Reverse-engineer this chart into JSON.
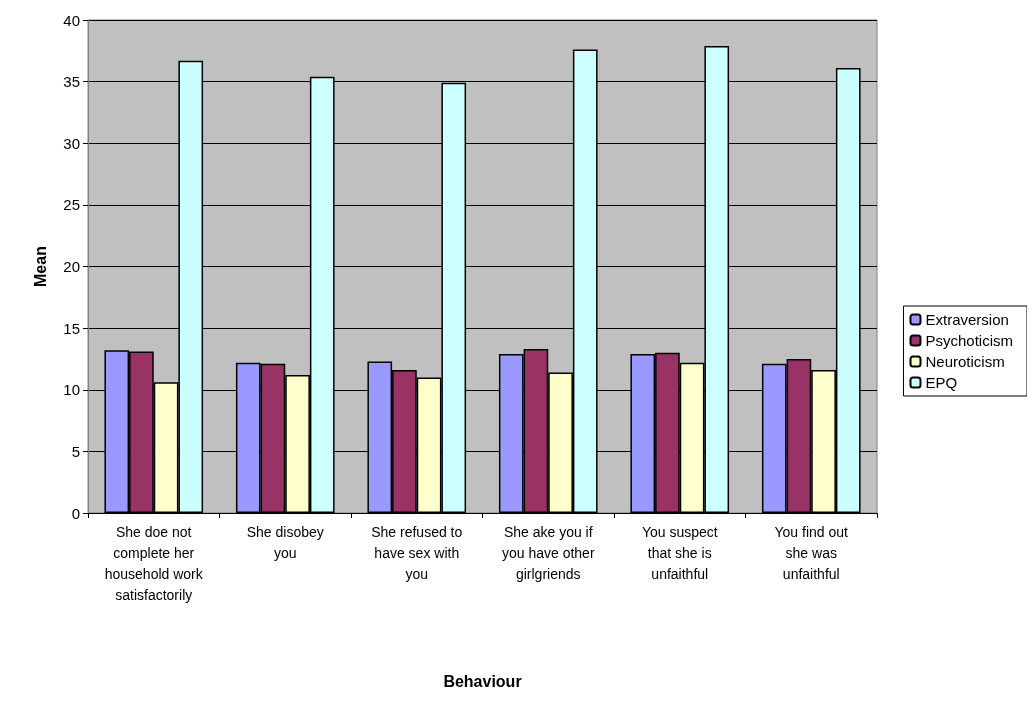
{
  "chart_data": {
    "type": "bar",
    "xlabel": "Behaviour",
    "ylabel": "Mean",
    "categories": [
      "She doe not complete her household work satisfactorily",
      "She disobey you",
      "She refused to have sex with you",
      "She ake you if you have other girlgriends",
      "You suspect that she is unfaithful",
      "You find out she was unfaithful"
    ],
    "series": [
      {
        "name": "Extraversion",
        "color": "#9999ff",
        "values": [
          13.2,
          12.2,
          12.3,
          12.9,
          12.9,
          12.1
        ]
      },
      {
        "name": "Psychoticism",
        "color": "#993366",
        "values": [
          13.1,
          12.1,
          11.6,
          13.3,
          13.0,
          12.5
        ]
      },
      {
        "name": "Neuroticism",
        "color": "#ffffcc",
        "values": [
          10.6,
          11.2,
          11.0,
          11.4,
          12.2,
          11.6
        ]
      },
      {
        "name": "EPQ",
        "color": "#ccffff",
        "values": [
          36.7,
          35.4,
          34.9,
          37.6,
          37.9,
          36.1
        ]
      }
    ],
    "ylim": [
      0,
      40
    ],
    "yticks": [
      0,
      5,
      10,
      15,
      20,
      25,
      30,
      35,
      40
    ],
    "grid": "y",
    "legend": "right"
  }
}
